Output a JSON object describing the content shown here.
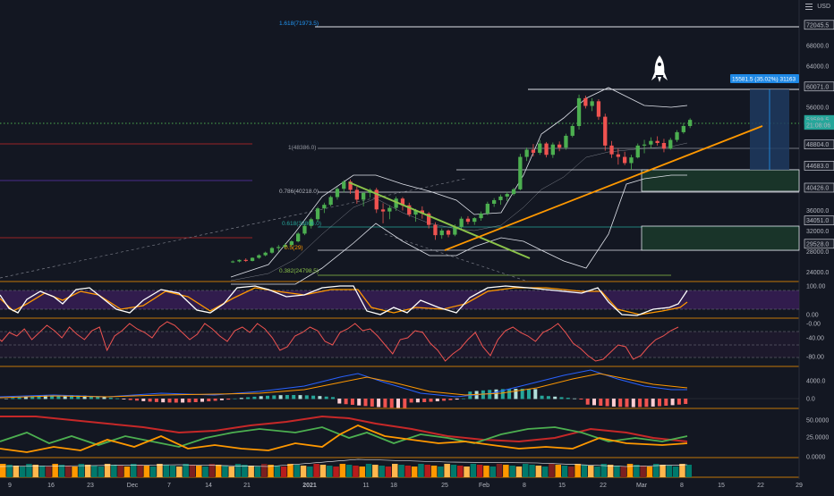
{
  "header": {
    "currency": "USD",
    "menu_icon": "hamburger-icon"
  },
  "colors": {
    "background": "#131722",
    "bull": "#26a69a",
    "bull_bright": "#4caf50",
    "bear": "#ef5350",
    "trend": "#ff9800",
    "green_line": "#8bc34a",
    "stoch_fill": "#3c1f5c",
    "border": "#ff9800"
  },
  "chart_data": [
    {
      "type": "candlestick",
      "panel": "price",
      "y_axis_labels": [
        {
          "text": "72045.5",
          "value": 72045.5,
          "boxed": true
        },
        {
          "text": "68000.0",
          "value": 68000
        },
        {
          "text": "64000.0",
          "value": 64000
        },
        {
          "text": "60071.0",
          "value": 60071,
          "boxed": true
        },
        {
          "text": "56000.0",
          "value": 56000
        },
        {
          "text": "53589.5",
          "value": 53589.5,
          "boxed": true,
          "color": "#26a69a"
        },
        {
          "text": "21:08:06",
          "value": 52600,
          "boxed": true,
          "color": "#26a69a",
          "sub": true
        },
        {
          "text": "48804.0",
          "value": 48804,
          "boxed": true
        },
        {
          "text": "44683.0",
          "value": 44683,
          "boxed": true
        },
        {
          "text": "40426.0",
          "value": 40426,
          "boxed": true
        },
        {
          "text": "36000.0",
          "value": 36000
        },
        {
          "text": "34051.0",
          "value": 34051,
          "boxed": true
        },
        {
          "text": "32000.0",
          "value": 32000
        },
        {
          "text": "29528.0",
          "value": 29528,
          "boxed": true
        },
        {
          "text": "28000.0",
          "value": 28000
        },
        {
          "text": "24000.0",
          "value": 24000
        }
      ],
      "x_axis_labels": [
        {
          "text": "9",
          "bold": false
        },
        {
          "text": "16",
          "bold": false
        },
        {
          "text": "23",
          "bold": false
        },
        {
          "text": "Dec",
          "bold": false
        },
        {
          "text": "7",
          "bold": false
        },
        {
          "text": "14",
          "bold": false
        },
        {
          "text": "21",
          "bold": false
        },
        {
          "text": "2021",
          "bold": true
        },
        {
          "text": "11",
          "bold": false
        },
        {
          "text": "18",
          "bold": false
        },
        {
          "text": "25",
          "bold": false
        },
        {
          "text": "Feb",
          "bold": false
        },
        {
          "text": "8",
          "bold": false
        },
        {
          "text": "15",
          "bold": false
        },
        {
          "text": "22",
          "bold": false
        },
        {
          "text": "Mar",
          "bold": false
        },
        {
          "text": "8",
          "bold": false
        },
        {
          "text": "15",
          "bold": false
        },
        {
          "text": "22",
          "bold": false
        },
        {
          "text": "29",
          "bold": false
        }
      ],
      "fib_labels": [
        {
          "text": "1.618(71973.5)",
          "color": "#2196f3"
        },
        {
          "text": "1(48386.0)",
          "color": "#9598a1"
        },
        {
          "text": "0.786(40218.0)",
          "color": "#b2b5be"
        },
        {
          "text": "0.618(33806.0)",
          "color": "#26a69a"
        },
        {
          "text": "0.5(29)",
          "color": "#ff9800"
        },
        {
          "text": "0.382(24798.5)",
          "color": "#8bc34a"
        }
      ],
      "measure_label": "15581.5 (35.02%) 31163",
      "rocket_icon": "rocket-icon",
      "series": [
        {
          "name": "",
          "kind": "candles",
          "ohlc": [
            [
              26000,
              26300,
              25800,
              26100
            ],
            [
              26100,
              26500,
              25900,
              26400
            ],
            [
              26400,
              26700,
              26000,
              26200
            ],
            [
              26200,
              26900,
              26100,
              26800
            ],
            [
              26800,
              27500,
              26600,
              27300
            ],
            [
              27300,
              28000,
              27100,
              27800
            ],
            [
              27800,
              28900,
              27600,
              28700
            ],
            [
              28700,
              29300,
              28000,
              28900
            ],
            [
              28900,
              29600,
              28500,
              29300
            ],
            [
              29300,
              30200,
              28900,
              30000
            ],
            [
              30000,
              31800,
              29800,
              31500
            ],
            [
              31500,
              33400,
              31200,
              33000
            ],
            [
              33000,
              34600,
              32500,
              34300
            ],
            [
              34300,
              36700,
              33900,
              36400
            ],
            [
              36400,
              37500,
              35500,
              37100
            ],
            [
              37100,
              38900,
              36800,
              38600
            ],
            [
              38600,
              40500,
              38100,
              40200
            ],
            [
              40200,
              41900,
              39500,
              41600
            ],
            [
              41600,
              42000,
              39200,
              40000
            ],
            [
              40000,
              40600,
              37300,
              38100
            ],
            [
              38100,
              39600,
              36800,
              39400
            ],
            [
              39400,
              40300,
              38500,
              40000
            ],
            [
              40000,
              40400,
              35500,
              36200
            ],
            [
              36200,
              37400,
              33500,
              35800
            ],
            [
              35800,
              37000,
              34300,
              36500
            ],
            [
              36500,
              38700,
              35900,
              38300
            ],
            [
              38300,
              38600,
              36000,
              37000
            ],
            [
              37000,
              37500,
              34800,
              35200
            ],
            [
              35200,
              36300,
              33800,
              36000
            ],
            [
              36000,
              36800,
              34400,
              35400
            ],
            [
              35400,
              35700,
              32500,
              33200
            ],
            [
              33200,
              33700,
              30300,
              31200
            ],
            [
              31200,
              32500,
              30500,
              32100
            ],
            [
              32100,
              32300,
              30800,
              31300
            ],
            [
              31300,
              33300,
              31000,
              32800
            ],
            [
              32800,
              34800,
              32200,
              34400
            ],
            [
              34400,
              34900,
              33300,
              33800
            ],
            [
              33800,
              34700,
              33200,
              34500
            ],
            [
              34500,
              35800,
              34000,
              35400
            ],
            [
              35400,
              37700,
              35100,
              37300
            ],
            [
              37300,
              38400,
              36700,
              38000
            ],
            [
              38000,
              39100,
              37100,
              38700
            ],
            [
              38700,
              39600,
              37800,
              39200
            ],
            [
              39200,
              40400,
              38900,
              40100
            ],
            [
              40100,
              47000,
              39900,
              46400
            ],
            [
              46400,
              48200,
              45600,
              47800
            ],
            [
              47800,
              48900,
              46500,
              47200
            ],
            [
              47200,
              49700,
              46800,
              49000
            ],
            [
              49000,
              49300,
              46300,
              46800
            ],
            [
              46800,
              49200,
              46200,
              48800
            ],
            [
              48800,
              49400,
              47500,
              48200
            ],
            [
              48200,
              50900,
              47800,
              50500
            ],
            [
              50500,
              52800,
              50200,
              52400
            ],
            [
              52400,
              58500,
              51700,
              57800
            ],
            [
              57800,
              58300,
              55800,
              56300
            ],
            [
              56300,
              57800,
              55300,
              57200
            ],
            [
              57200,
              57600,
              53600,
              54200
            ],
            [
              54200,
              54800,
              47600,
              48600
            ],
            [
              48600,
              49500,
              46200,
              46900
            ],
            [
              46900,
              48000,
              44900,
              46400
            ],
            [
              46400,
              47400,
              44800,
              45200
            ],
            [
              45200,
              46800,
              43900,
              46300
            ],
            [
              46300,
              49000,
              46100,
              48600
            ],
            [
              48600,
              49700,
              47100,
              48800
            ],
            [
              48800,
              50200,
              48000,
              49500
            ],
            [
              49500,
              50400,
              48600,
              49100
            ],
            [
              49100,
              49900,
              47300,
              48000
            ],
            [
              48000,
              50100,
              47800,
              49700
            ],
            [
              49700,
              51600,
              49300,
              51200
            ],
            [
              51200,
              53000,
              50900,
              52400
            ],
            [
              52400,
              53900,
              52000,
              53590
            ]
          ]
        },
        {
          "name": "",
          "kind": "bollinger"
        }
      ]
    },
    {
      "type": "line",
      "panel": "stoch_rsi",
      "y_axis_labels": [
        {
          "text": "100.00"
        },
        {
          "text": "0.00"
        }
      ],
      "series": [
        {
          "name": ""
        },
        {
          "name": ""
        }
      ]
    },
    {
      "type": "line",
      "panel": "williams_r",
      "y_axis_labels": [
        {
          "text": "-0.00"
        },
        {
          "text": "-40.00"
        },
        {
          "text": "-80.00"
        }
      ],
      "series": [
        {
          "name": ""
        }
      ]
    },
    {
      "type": "bar",
      "panel": "macd",
      "y_axis_labels": [
        {
          "text": "4000.0"
        },
        {
          "text": "0.0"
        }
      ],
      "series": [
        {
          "name": ""
        },
        {
          "name": ""
        },
        {
          "name": ""
        }
      ]
    },
    {
      "type": "line",
      "panel": "dmi",
      "y_axis_labels": [
        {
          "text": "50.0000"
        },
        {
          "text": "25.0000"
        }
      ],
      "series": [
        {
          "name": ""
        },
        {
          "name": ""
        },
        {
          "name": ""
        }
      ]
    },
    {
      "type": "bar",
      "panel": "volume_heat",
      "y_axis_labels": [
        {
          "text": "0.0000"
        }
      ],
      "series": [
        {
          "name": ""
        }
      ]
    }
  ]
}
